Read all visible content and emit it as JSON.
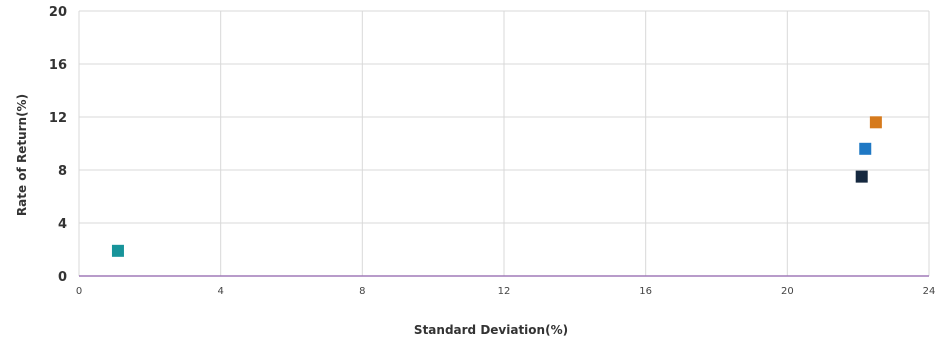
{
  "chart_data": {
    "type": "scatter",
    "title": "",
    "xlabel": "Standard Deviation(%)",
    "ylabel": "Rate of Return(%)",
    "xlim": [
      0,
      24
    ],
    "ylim": [
      0,
      20
    ],
    "xticks": [
      "0",
      "4",
      "8",
      "12",
      "16",
      "20",
      "24"
    ],
    "yticks": [
      "0",
      "4",
      "8",
      "12",
      "16",
      "20"
    ],
    "grid": true,
    "legend": "none",
    "points": [
      {
        "x": 1.1,
        "y": 1.9,
        "color": "#17949a"
      },
      {
        "x": 22.1,
        "y": 7.5,
        "color": "#15283f"
      },
      {
        "x": 22.2,
        "y": 9.6,
        "color": "#1f78c4"
      },
      {
        "x": 22.5,
        "y": 11.6,
        "color": "#d67a1c"
      }
    ]
  }
}
